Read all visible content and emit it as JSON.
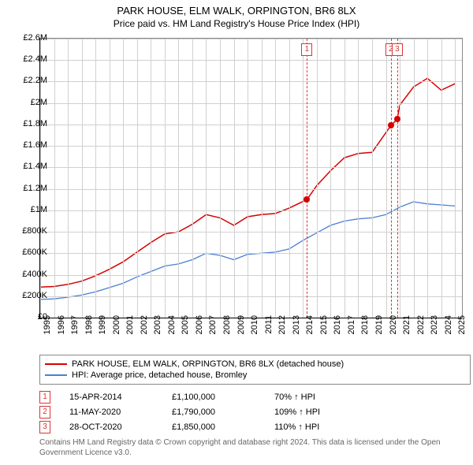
{
  "title": "PARK HOUSE, ELM WALK, ORPINGTON, BR6 8LX",
  "subtitle": "Price paid vs. HM Land Registry's House Price Index (HPI)",
  "chart": {
    "type": "line",
    "background_color": "#ffffff",
    "grid_color": "#d0d0d0",
    "axis_color": "#000000",
    "x_years": [
      1995,
      1996,
      1997,
      1998,
      1999,
      2000,
      2001,
      2002,
      2003,
      2004,
      2005,
      2006,
      2007,
      2008,
      2009,
      2010,
      2011,
      2012,
      2013,
      2014,
      2015,
      2016,
      2017,
      2018,
      2019,
      2020,
      2021,
      2022,
      2023,
      2024,
      2025
    ],
    "xlim": [
      1995,
      2025.5
    ],
    "ylim": [
      0,
      2600000
    ],
    "ytick_step": 200000,
    "y_labels": [
      "£0",
      "£200K",
      "£400K",
      "£600K",
      "£800K",
      "£1M",
      "£1.2M",
      "£1.4M",
      "£1.6M",
      "£1.8M",
      "£2M",
      "£2.2M",
      "£2.4M",
      "£2.6M"
    ],
    "label_fontsize": 11,
    "series": [
      {
        "name": "hpi",
        "color": "#4a7fd6",
        "width": 1.3,
        "points": [
          [
            1995,
            170000
          ],
          [
            1996,
            175000
          ],
          [
            1997,
            190000
          ],
          [
            1998,
            210000
          ],
          [
            1999,
            240000
          ],
          [
            2000,
            280000
          ],
          [
            2001,
            320000
          ],
          [
            2002,
            380000
          ],
          [
            2003,
            430000
          ],
          [
            2004,
            480000
          ],
          [
            2005,
            500000
          ],
          [
            2006,
            540000
          ],
          [
            2007,
            600000
          ],
          [
            2008,
            580000
          ],
          [
            2009,
            540000
          ],
          [
            2010,
            590000
          ],
          [
            2011,
            600000
          ],
          [
            2012,
            610000
          ],
          [
            2013,
            640000
          ],
          [
            2014,
            720000
          ],
          [
            2015,
            790000
          ],
          [
            2016,
            860000
          ],
          [
            2017,
            900000
          ],
          [
            2018,
            920000
          ],
          [
            2019,
            930000
          ],
          [
            2020,
            960000
          ],
          [
            2021,
            1030000
          ],
          [
            2022,
            1080000
          ],
          [
            2023,
            1060000
          ],
          [
            2024,
            1050000
          ],
          [
            2025,
            1040000
          ]
        ]
      },
      {
        "name": "subject",
        "color": "#d60000",
        "width": 1.5,
        "points": [
          [
            1995,
            285000
          ],
          [
            1996,
            290000
          ],
          [
            1997,
            310000
          ],
          [
            1998,
            340000
          ],
          [
            1999,
            390000
          ],
          [
            2000,
            450000
          ],
          [
            2001,
            520000
          ],
          [
            2002,
            610000
          ],
          [
            2003,
            700000
          ],
          [
            2004,
            780000
          ],
          [
            2005,
            800000
          ],
          [
            2006,
            870000
          ],
          [
            2007,
            960000
          ],
          [
            2008,
            930000
          ],
          [
            2009,
            860000
          ],
          [
            2010,
            940000
          ],
          [
            2011,
            960000
          ],
          [
            2012,
            970000
          ],
          [
            2013,
            1020000
          ],
          [
            2014.29,
            1100000
          ],
          [
            2015,
            1230000
          ],
          [
            2016,
            1370000
          ],
          [
            2017,
            1490000
          ],
          [
            2018,
            1530000
          ],
          [
            2019,
            1540000
          ],
          [
            2020.36,
            1790000
          ],
          [
            2020.82,
            1850000
          ],
          [
            2021,
            1980000
          ],
          [
            2022,
            2150000
          ],
          [
            2023,
            2230000
          ],
          [
            2024,
            2120000
          ],
          [
            2025,
            2180000
          ]
        ]
      }
    ],
    "markers": [
      {
        "n": "1",
        "x": 2014.29,
        "y": 1100000
      },
      {
        "n": "2",
        "x": 2020.36,
        "y": 1790000
      },
      {
        "n": "3",
        "x": 2020.82,
        "y": 1850000
      }
    ]
  },
  "legend": {
    "items": [
      {
        "color": "#d60000",
        "label": "PARK HOUSE, ELM WALK, ORPINGTON, BR6 8LX (detached house)"
      },
      {
        "color": "#4a7fd6",
        "label": "HPI: Average price, detached house, Bromley"
      }
    ]
  },
  "sales": [
    {
      "n": "1",
      "date": "15-APR-2014",
      "price": "£1,100,000",
      "hpi": "70% ↑ HPI"
    },
    {
      "n": "2",
      "date": "11-MAY-2020",
      "price": "£1,790,000",
      "hpi": "109% ↑ HPI"
    },
    {
      "n": "3",
      "date": "28-OCT-2020",
      "price": "£1,850,000",
      "hpi": "110% ↑ HPI"
    }
  ],
  "footer": "Contains HM Land Registry data © Crown copyright and database right 2024. This data is licensed under the Open Government Licence v3.0."
}
